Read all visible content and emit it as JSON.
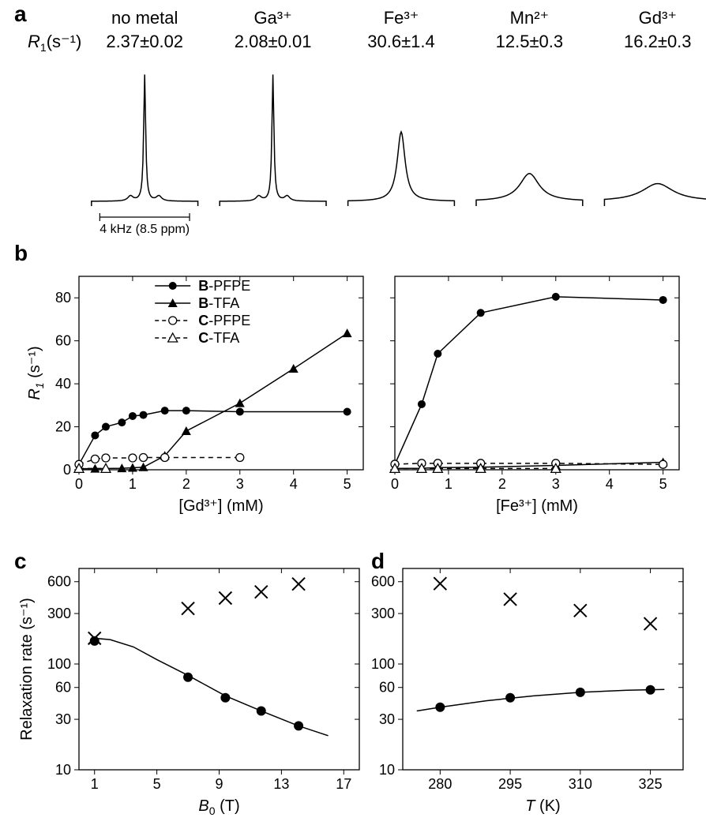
{
  "panelA": {
    "label": "a",
    "axisRowLabel": "R₁(s⁻¹)",
    "scaleBar": "4 kHz (8.5 ppm)",
    "columns": [
      {
        "name": "no metal",
        "r1": "2.37±0.02",
        "peak": "narrow",
        "height": 1.0,
        "fwhm": 1.0
      },
      {
        "name": "Ga³⁺",
        "r1": "2.08±0.01",
        "peak": "narrow",
        "height": 1.0,
        "fwhm": 1.0
      },
      {
        "name": "Fe³⁺",
        "r1": "30.6±1.4",
        "peak": "medium",
        "height": 0.55,
        "fwhm": 4.0
      },
      {
        "name": "Mn²⁺",
        "r1": "12.5±0.3",
        "peak": "broad",
        "height": 0.22,
        "fwhm": 10.0
      },
      {
        "name": "Gd³⁺",
        "r1": "16.2±0.3",
        "peak": "verybroad",
        "height": 0.14,
        "fwhm": 16.0
      }
    ],
    "style": {
      "fontsize_header": 22,
      "fontsize_r1": 22,
      "fontsize_scalebar": 16,
      "line_color": "#000000",
      "line_width": 1.5
    }
  },
  "panelB": {
    "label": "b",
    "ylabel": "R₁ (s⁻¹)",
    "ylabel_html": "<tspan font-style='italic'>R</tspan><tspan font-style='italic' baseline-shift='sub' font-size='14'>1</tspan> (s⁻¹)",
    "ylim": [
      0,
      90
    ],
    "yticks": [
      0,
      20,
      40,
      60,
      80
    ],
    "xlim": [
      0,
      5.3
    ],
    "xticks": [
      0,
      1,
      2,
      3,
      4,
      5
    ],
    "legend": [
      {
        "key": "B-PFPE",
        "label": "B-PFPE",
        "marker": "filledCircle",
        "line": "solid"
      },
      {
        "key": "B-TFA",
        "label": "B-TFA",
        "marker": "filledTriangle",
        "line": "solid"
      },
      {
        "key": "C-PFPE",
        "label": "C-PFPE",
        "marker": "openCircle",
        "line": "dashed"
      },
      {
        "key": "C-TFA",
        "label": "C-TFA",
        "marker": "openTriangle",
        "line": "dashed"
      }
    ],
    "left": {
      "xlabel": "[Gd³⁺] (mM)",
      "series": {
        "B-PFPE": [
          [
            0,
            2.5
          ],
          [
            0.3,
            16
          ],
          [
            0.5,
            20
          ],
          [
            0.8,
            22
          ],
          [
            1.0,
            25
          ],
          [
            1.2,
            25.5
          ],
          [
            1.6,
            27.5
          ],
          [
            2.0,
            27.5
          ],
          [
            3.0,
            27.0
          ],
          [
            5.0,
            27.0
          ]
        ],
        "B-TFA": [
          [
            0,
            0.5
          ],
          [
            0.3,
            0.5
          ],
          [
            0.5,
            0.6
          ],
          [
            0.8,
            0.7
          ],
          [
            1.0,
            0.9
          ],
          [
            1.2,
            1.2
          ],
          [
            1.6,
            6.5
          ],
          [
            2.0,
            18.0
          ],
          [
            3.0,
            31.0
          ],
          [
            4.0,
            47.0
          ],
          [
            5.0,
            63.5
          ]
        ],
        "C-PFPE": [
          [
            0,
            2.5
          ],
          [
            0.3,
            5.0
          ],
          [
            0.5,
            5.5
          ],
          [
            1.0,
            5.5
          ],
          [
            1.2,
            5.7
          ],
          [
            1.6,
            5.7
          ],
          [
            3.0,
            5.7
          ]
        ],
        "C-TFA": [
          [
            0,
            0.6
          ],
          [
            0.5,
            0.6
          ]
        ]
      }
    },
    "right": {
      "xlabel": "[Fe³⁺] (mM)",
      "series": {
        "B-PFPE": [
          [
            0,
            2.5
          ],
          [
            0.5,
            30.5
          ],
          [
            0.8,
            54.0
          ],
          [
            1.6,
            73.0
          ],
          [
            3.0,
            80.5
          ],
          [
            5.0,
            79.0
          ]
        ],
        "B-TFA": [
          [
            0,
            0.6
          ],
          [
            0.5,
            0.7
          ],
          [
            0.8,
            1.0
          ],
          [
            1.6,
            1.2
          ],
          [
            3.0,
            2.0
          ],
          [
            5.0,
            3.5
          ]
        ],
        "C-PFPE": [
          [
            0,
            2.6
          ],
          [
            0.5,
            3.0
          ],
          [
            0.8,
            3.0
          ],
          [
            1.6,
            3.0
          ],
          [
            3.0,
            3.0
          ],
          [
            5.0,
            2.5
          ]
        ],
        "C-TFA": [
          [
            0,
            0.6
          ],
          [
            0.5,
            0.6
          ],
          [
            0.8,
            0.6
          ],
          [
            1.6,
            0.6
          ],
          [
            3.0,
            0.6
          ]
        ]
      }
    },
    "style": {
      "line_color": "#000000",
      "line_width": 1.5,
      "marker_size": 5,
      "fontsize_axis": 20,
      "fontsize_tick": 18,
      "fontsize_legend": 18,
      "border_color": "#000000"
    }
  },
  "panelC": {
    "label": "c",
    "ylabel": "Relaxation rate (s⁻¹)",
    "xlabel": "B₀ (T)",
    "xlim": [
      0,
      18
    ],
    "xticks": [
      1,
      5,
      9,
      13,
      17
    ],
    "ylim": [
      10,
      800
    ],
    "yticks": [
      10,
      30,
      60,
      100,
      300,
      600
    ],
    "yticklabels": [
      "10",
      "30",
      "60",
      "100",
      "300",
      "600"
    ],
    "series": {
      "R1": {
        "marker": "filledCircle",
        "line": true,
        "points": [
          [
            1.0,
            165
          ],
          [
            7.0,
            75
          ],
          [
            9.4,
            48
          ],
          [
            11.7,
            36
          ],
          [
            14.1,
            26
          ]
        ]
      },
      "R2": {
        "marker": "cross",
        "line": false,
        "points": [
          [
            1.0,
            175
          ],
          [
            7.0,
            335
          ],
          [
            9.4,
            420
          ],
          [
            11.7,
            480
          ],
          [
            14.1,
            570
          ]
        ]
      }
    },
    "fit_curve": [
      [
        0.6,
        155
      ],
      [
        1.0,
        175
      ],
      [
        2.0,
        170
      ],
      [
        3.5,
        145
      ],
      [
        5.0,
        110
      ],
      [
        7.0,
        78
      ],
      [
        9.4,
        50
      ],
      [
        11.7,
        36
      ],
      [
        14.1,
        26
      ],
      [
        16.0,
        21
      ]
    ],
    "style": {
      "line_color": "#000000",
      "line_width": 1.5,
      "marker_size": 6,
      "fontsize_axis": 20,
      "fontsize_tick": 18
    }
  },
  "panelD": {
    "label": "d",
    "xlabel": "T (K)",
    "xlim": [
      272,
      332
    ],
    "xticks": [
      280,
      295,
      310,
      325
    ],
    "ylim": [
      10,
      800
    ],
    "yticks": [
      10,
      30,
      60,
      100,
      300,
      600
    ],
    "yticklabels": [
      "10",
      "30",
      "60",
      "100",
      "300",
      "600"
    ],
    "series": {
      "R1": {
        "marker": "filledCircle",
        "line": true,
        "points": [
          [
            280,
            39
          ],
          [
            295,
            48
          ],
          [
            310,
            54
          ],
          [
            325,
            57
          ]
        ]
      },
      "R2": {
        "marker": "cross",
        "line": false,
        "points": [
          [
            280,
            575
          ],
          [
            295,
            410
          ],
          [
            310,
            320
          ],
          [
            325,
            240
          ]
        ]
      }
    },
    "fit_curve": [
      [
        275,
        36
      ],
      [
        280,
        39
      ],
      [
        290,
        45
      ],
      [
        300,
        50
      ],
      [
        310,
        54
      ],
      [
        320,
        56.5
      ],
      [
        328,
        57.5
      ]
    ],
    "style": {
      "line_color": "#000000",
      "line_width": 1.5,
      "marker_size": 6,
      "fontsize_axis": 20,
      "fontsize_tick": 18
    }
  }
}
